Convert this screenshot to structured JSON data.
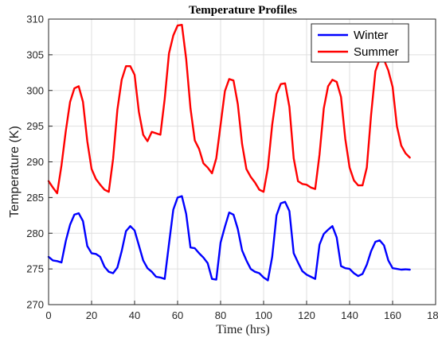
{
  "chart_data": {
    "type": "line",
    "title": "Temperature Profiles",
    "xlabel": "Time (hrs)",
    "ylabel": "Temperature (K)",
    "xlim": [
      0,
      180
    ],
    "ylim": [
      270,
      310
    ],
    "xticks": [
      0,
      20,
      40,
      60,
      80,
      100,
      120,
      140,
      160,
      180
    ],
    "yticks": [
      270,
      275,
      280,
      285,
      290,
      295,
      300,
      305,
      310
    ],
    "grid": true,
    "legend_position": "top-right",
    "series": [
      {
        "name": "Winter",
        "color": "#0000ff",
        "x": [
          0,
          2,
          4,
          6,
          8,
          10,
          12,
          14,
          16,
          18,
          20,
          22,
          24,
          26,
          28,
          30,
          32,
          34,
          36,
          38,
          40,
          42,
          44,
          46,
          48,
          50,
          52,
          54,
          56,
          58,
          60,
          62,
          64,
          66,
          68,
          70,
          72,
          74,
          76,
          78,
          80,
          82,
          84,
          86,
          88,
          90,
          92,
          94,
          96,
          98,
          100,
          102,
          104,
          106,
          108,
          110,
          112,
          114,
          116,
          118,
          120,
          122,
          124,
          126,
          128,
          130,
          132,
          134,
          136,
          138,
          140,
          142,
          144,
          146,
          148,
          150,
          152,
          154,
          156,
          158,
          160,
          162,
          164,
          166,
          168
        ],
        "values": [
          276.7,
          276.2,
          276.1,
          275.9,
          278.9,
          281.2,
          282.6,
          282.8,
          281.7,
          278.2,
          277.2,
          277.1,
          276.7,
          275.3,
          274.6,
          274.4,
          275.2,
          277.5,
          280.3,
          281.0,
          280.4,
          278.3,
          276.2,
          275.1,
          274.6,
          273.9,
          273.8,
          273.6,
          278.5,
          283.3,
          285.0,
          285.2,
          282.7,
          278.0,
          277.9,
          277.2,
          276.6,
          275.8,
          273.6,
          273.5,
          278.7,
          280.9,
          282.9,
          282.6,
          280.6,
          277.6,
          276.2,
          275.0,
          274.6,
          274.4,
          273.8,
          273.4,
          276.7,
          282.5,
          284.2,
          284.4,
          283.1,
          277.2,
          275.9,
          274.7,
          274.2,
          273.9,
          273.6,
          278.4,
          279.9,
          280.5,
          281.0,
          279.4,
          275.4,
          275.1,
          275.0,
          274.4,
          274.0,
          274.3,
          275.6,
          277.5,
          278.8,
          279.0,
          278.3,
          276.2,
          275.1,
          275.0,
          274.9,
          274.95,
          274.9
        ]
      },
      {
        "name": "Summer",
        "color": "#ff0000",
        "x": [
          0,
          2,
          4,
          6,
          8,
          10,
          12,
          14,
          16,
          18,
          20,
          22,
          24,
          26,
          28,
          30,
          32,
          34,
          36,
          38,
          40,
          42,
          44,
          46,
          48,
          50,
          52,
          54,
          56,
          58,
          60,
          62,
          64,
          66,
          68,
          70,
          72,
          74,
          76,
          78,
          80,
          82,
          84,
          86,
          88,
          90,
          92,
          94,
          96,
          98,
          100,
          102,
          104,
          106,
          108,
          110,
          112,
          114,
          116,
          118,
          120,
          122,
          124,
          126,
          128,
          130,
          132,
          134,
          136,
          138,
          140,
          142,
          144,
          146,
          148,
          150,
          152,
          154,
          156,
          158,
          160,
          162,
          164,
          166,
          168
        ],
        "values": [
          287.3,
          286.4,
          285.6,
          289.5,
          294.3,
          298.4,
          300.3,
          300.6,
          298.4,
          292.9,
          289.0,
          287.6,
          286.8,
          286.1,
          285.8,
          290.4,
          297.3,
          301.5,
          303.4,
          303.4,
          302.2,
          297.0,
          293.8,
          292.9,
          294.2,
          294.0,
          293.8,
          298.8,
          305.2,
          307.7,
          309.1,
          309.2,
          304.4,
          297.5,
          293.0,
          291.8,
          289.8,
          289.2,
          288.4,
          290.5,
          295.2,
          299.9,
          301.6,
          301.4,
          298.1,
          292.5,
          289.0,
          287.9,
          287.1,
          286.1,
          285.8,
          289.2,
          295.2,
          299.5,
          300.9,
          301.0,
          297.7,
          290.5,
          287.3,
          286.9,
          286.8,
          286.4,
          286.2,
          291.0,
          297.5,
          300.6,
          301.5,
          301.2,
          299.1,
          293.2,
          289.2,
          287.4,
          286.7,
          286.7,
          289.2,
          296.6,
          302.7,
          304.4,
          304.3,
          302.8,
          300.5,
          295.0,
          292.3,
          291.2,
          290.6
        ]
      }
    ]
  }
}
